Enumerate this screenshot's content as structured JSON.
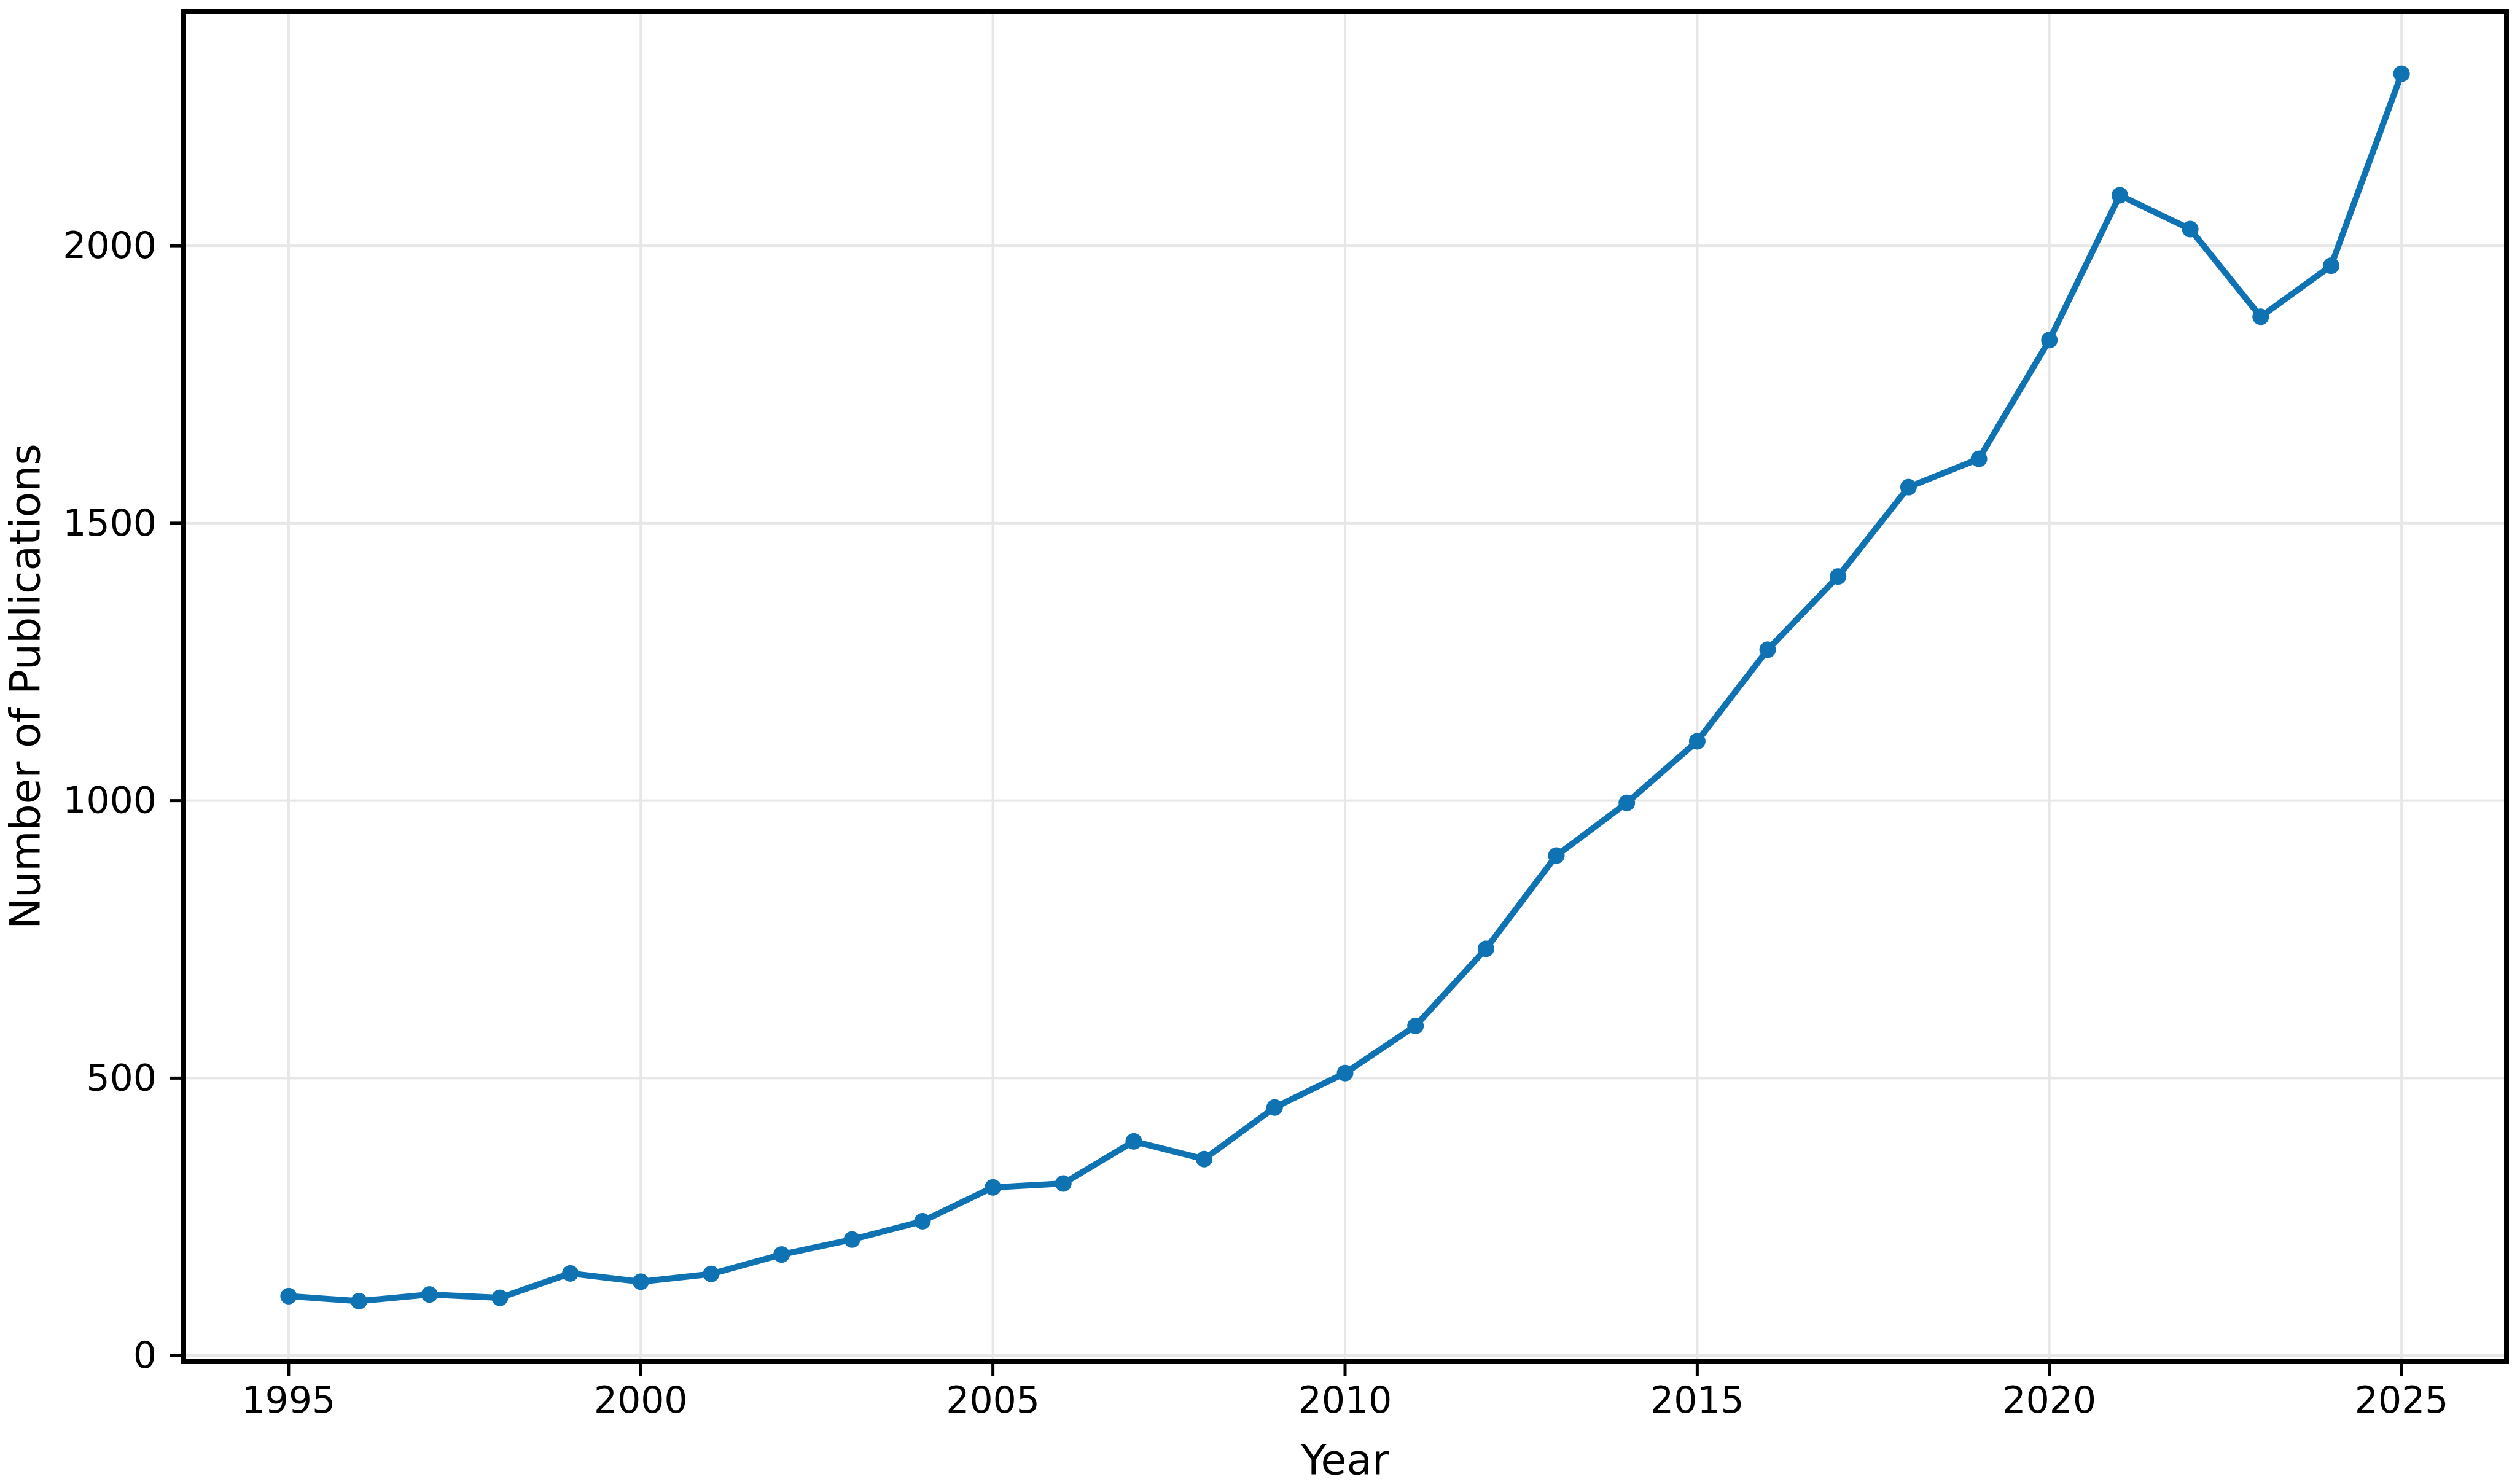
{
  "figure": {
    "background": "#ffffff"
  },
  "chart_data": {
    "type": "line",
    "title": "",
    "xlabel": "Year",
    "ylabel": "Number of Publications",
    "x": [
      1995,
      1996,
      1997,
      1998,
      1999,
      2000,
      2001,
      2002,
      2003,
      2004,
      2005,
      2006,
      2007,
      2008,
      2009,
      2010,
      2011,
      2012,
      2013,
      2014,
      2015,
      2016,
      2017,
      2018,
      2019,
      2020,
      2021,
      2022,
      2023,
      2024,
      2025
    ],
    "y": [
      107,
      98,
      110,
      104,
      148,
      133,
      147,
      182,
      209,
      242,
      303,
      310,
      386,
      354,
      447,
      509,
      594,
      733,
      901,
      996,
      1107,
      1272,
      1404,
      1565,
      1616,
      1830,
      2091,
      2030,
      1872,
      1964,
      2310
    ],
    "xticks": [
      1995,
      2000,
      2005,
      2010,
      2015,
      2020,
      2025
    ],
    "yticks": [
      0,
      500,
      1000,
      1500,
      2000
    ],
    "xtick_labels": [
      "1995",
      "2000",
      "2005",
      "2010",
      "2015",
      "2020",
      "2025"
    ],
    "ytick_labels": [
      "0",
      "500",
      "1000",
      "1500",
      "2000"
    ],
    "xlim": [
      1993.51,
      2026.49
    ],
    "ylim": [
      -11,
      2423
    ],
    "grid": true,
    "legend": "none",
    "line_color": "#0e72b3",
    "marker": "o",
    "grid_color": "#e7e7e7",
    "axis_color": "#000000"
  }
}
